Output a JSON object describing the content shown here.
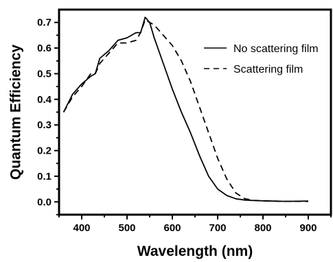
{
  "chart_data": {
    "type": "line",
    "title": "",
    "xlabel": "Wavelength (nm)",
    "ylabel": "Quantum Efficiency",
    "xlim": [
      350,
      950
    ],
    "ylim": [
      -0.05,
      0.75
    ],
    "xticks": [
      400,
      500,
      600,
      700,
      800,
      900
    ],
    "yticks": [
      0.0,
      0.1,
      0.2,
      0.3,
      0.4,
      0.5,
      0.6,
      0.7
    ],
    "xtick_labels": [
      "400",
      "500",
      "600",
      "700",
      "800",
      "900"
    ],
    "ytick_labels": [
      "0.0",
      "0.1",
      "0.2",
      "0.3",
      "0.4",
      "0.5",
      "0.6",
      "0.7"
    ],
    "grid": false,
    "legend_position": "top-right",
    "series": [
      {
        "name": "No scattering film",
        "style": "solid",
        "color": "#000000",
        "x": [
          360,
          380,
          400,
          420,
          430,
          440,
          460,
          470,
          480,
          500,
          510,
          520,
          530,
          540,
          550,
          560,
          580,
          600,
          620,
          640,
          660,
          680,
          700,
          720,
          740,
          760,
          780,
          800,
          850,
          900
        ],
        "y": [
          0.35,
          0.42,
          0.46,
          0.49,
          0.5,
          0.56,
          0.59,
          0.61,
          0.63,
          0.64,
          0.65,
          0.66,
          0.66,
          0.72,
          0.7,
          0.64,
          0.54,
          0.44,
          0.35,
          0.27,
          0.18,
          0.1,
          0.05,
          0.025,
          0.012,
          0.007,
          0.005,
          0.004,
          0.002,
          0.003
        ]
      },
      {
        "name": "Scattering film",
        "style": "dashed",
        "color": "#000000",
        "x": [
          360,
          380,
          400,
          420,
          430,
          440,
          460,
          470,
          480,
          500,
          520,
          530,
          540,
          550,
          560,
          580,
          600,
          620,
          640,
          660,
          680,
          700,
          720,
          740,
          760,
          780,
          800,
          850,
          900
        ],
        "y": [
          0.35,
          0.41,
          0.45,
          0.5,
          0.5,
          0.54,
          0.58,
          0.6,
          0.62,
          0.62,
          0.63,
          0.66,
          0.71,
          0.7,
          0.69,
          0.65,
          0.61,
          0.55,
          0.47,
          0.37,
          0.27,
          0.17,
          0.09,
          0.035,
          0.012,
          0.006,
          0.004,
          0.002,
          0.002
        ]
      }
    ]
  }
}
